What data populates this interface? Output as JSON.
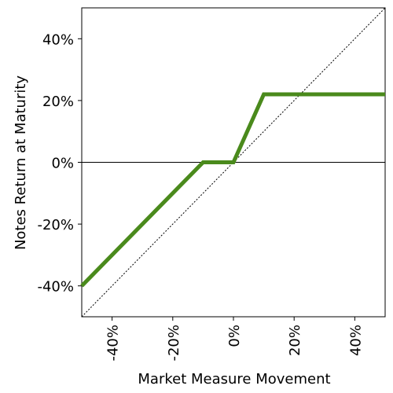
{
  "chart_data": {
    "type": "line",
    "x_label": "Market Measure Movement",
    "y_label": "Notes Return at Maturity",
    "x": [
      -50,
      -10,
      0,
      10,
      50
    ],
    "values": [
      -40,
      0,
      0,
      22,
      22
    ],
    "color": "#4a8a1c",
    "diagonal": {
      "x": [
        -50,
        50
      ],
      "y": [
        -50,
        50
      ],
      "color": "#000000"
    },
    "hline": 0,
    "xlim": [
      -50,
      50
    ],
    "ylim": [
      -50,
      50
    ],
    "xticks": [
      {
        "value": -40,
        "label": "-40%"
      },
      {
        "value": -20,
        "label": "-20%"
      },
      {
        "value": 0,
        "label": "0%"
      },
      {
        "value": 20,
        "label": "20%"
      },
      {
        "value": 40,
        "label": "40%"
      }
    ],
    "yticks": [
      {
        "value": -40,
        "label": "-40%"
      },
      {
        "value": -20,
        "label": "-20%"
      },
      {
        "value": 0,
        "label": "0%"
      },
      {
        "value": 20,
        "label": "20%"
      },
      {
        "value": 40,
        "label": "40%"
      }
    ]
  }
}
